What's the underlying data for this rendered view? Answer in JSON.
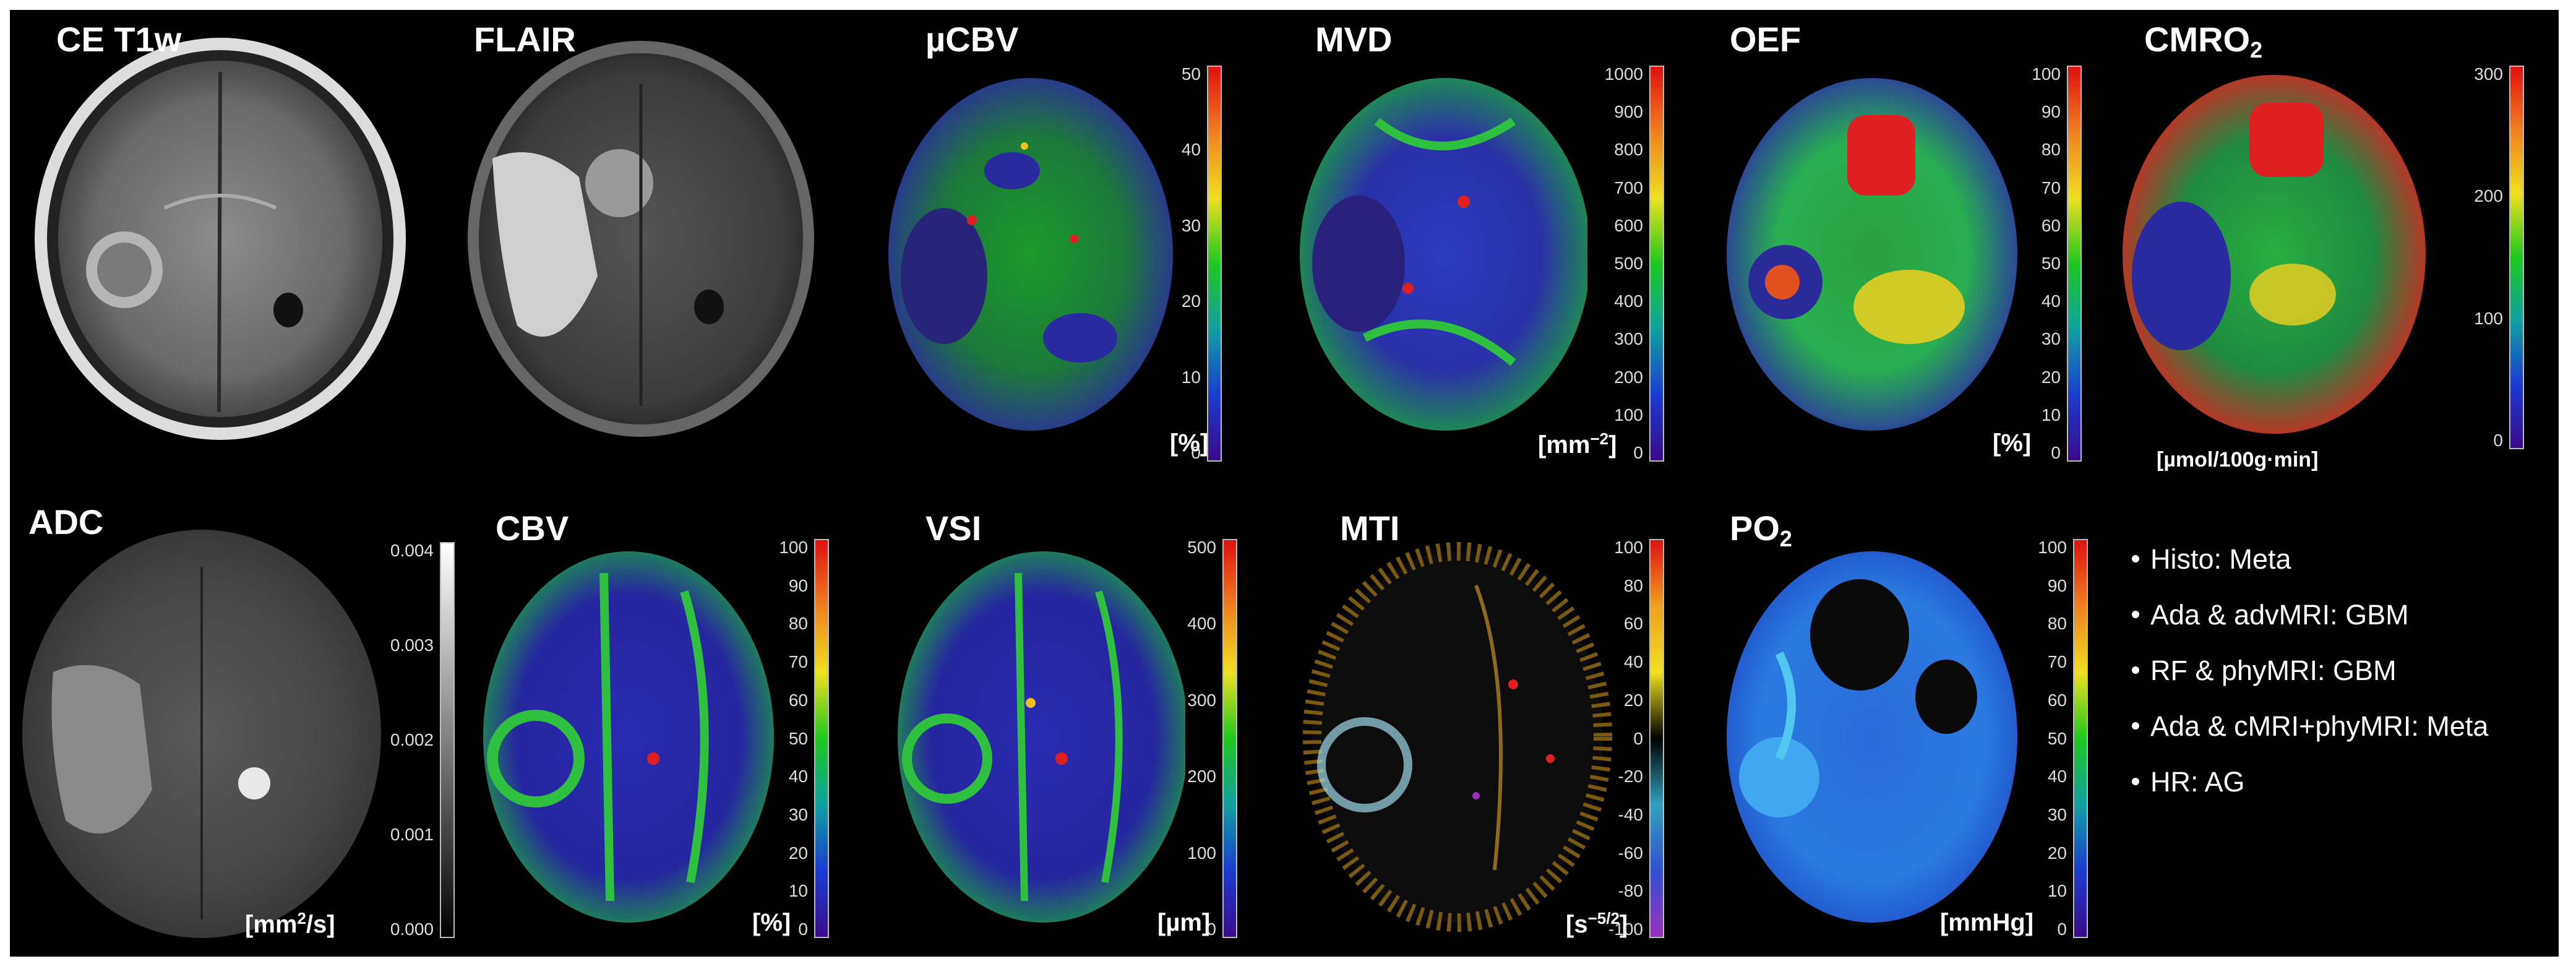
{
  "panels": {
    "ce_t1w": {
      "title": "CE T1w"
    },
    "flair": {
      "title": "FLAIR"
    },
    "ucbv": {
      "title": "µCBV",
      "unit": "[%]",
      "ticks": [
        "50",
        "40",
        "30",
        "20",
        "10",
        "0"
      ]
    },
    "mvd": {
      "title": "MVD",
      "unit_base": "[mm",
      "unit_exp": "−2",
      "unit_close": "]",
      "ticks": [
        "1000",
        "900",
        "800",
        "700",
        "600",
        "500",
        "400",
        "300",
        "200",
        "100",
        "0"
      ]
    },
    "oef": {
      "title": "OEF",
      "unit": "[%]",
      "ticks": [
        "100",
        "90",
        "80",
        "70",
        "60",
        "50",
        "40",
        "30",
        "20",
        "10",
        "0"
      ]
    },
    "cmro2": {
      "title_base": "CMRO",
      "title_sub": "2",
      "unit": "[µmol/100g·min]",
      "ticks": [
        "300",
        "200",
        "100",
        "0"
      ]
    },
    "adc": {
      "title": "ADC",
      "unit_base": "[mm",
      "unit_exp": "2",
      "unit_close": "/s]",
      "ticks": [
        "0.004",
        "0.003",
        "0.002",
        "0.001",
        "0.000"
      ]
    },
    "cbv": {
      "title": "CBV",
      "unit": "[%]",
      "ticks": [
        "100",
        "90",
        "80",
        "70",
        "60",
        "50",
        "40",
        "30",
        "20",
        "10",
        "0"
      ]
    },
    "vsi": {
      "title": "VSI",
      "unit": "[µm]",
      "ticks": [
        "500",
        "400",
        "300",
        "200",
        "100",
        "0"
      ]
    },
    "mti": {
      "title": "MTI",
      "unit_base": "[s",
      "unit_exp": "−5/2",
      "unit_close": "]",
      "ticks": [
        "100",
        "80",
        "60",
        "40",
        "20",
        "0",
        "-20",
        "-40",
        "-60",
        "-80",
        "-100"
      ]
    },
    "po2": {
      "title_base": "PO",
      "title_sub": "2",
      "unit": "[mmHg]",
      "ticks": [
        "100",
        "90",
        "80",
        "70",
        "60",
        "50",
        "40",
        "30",
        "20",
        "10",
        "0"
      ]
    }
  },
  "legend": [
    "Histo: Meta",
    "Ada & advMRI: GBM",
    "RF & phyMRI: GBM",
    "Ada & cMRI+phyMRI: Meta",
    "HR: AG"
  ],
  "colors": {
    "background": "#000000",
    "text": "#ffffff",
    "jet_low": "#3a0a8a",
    "jet_mid": "#1ec81e",
    "jet_high": "#e01010"
  }
}
